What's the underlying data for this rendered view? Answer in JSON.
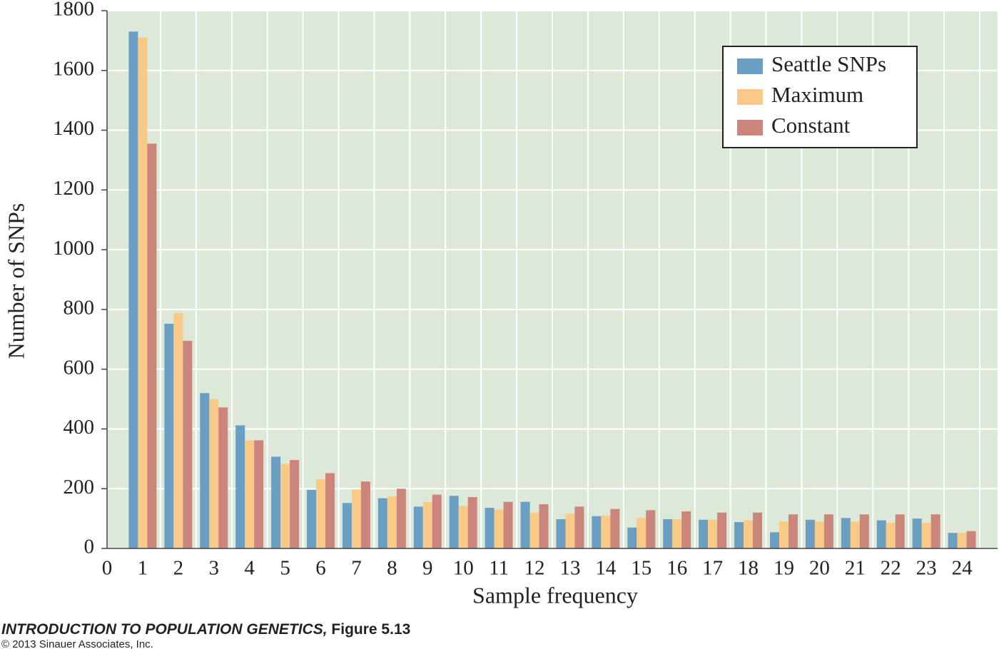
{
  "chart_data": {
    "type": "bar",
    "x_label": "Sample frequency",
    "y_label": "Number of SNPs",
    "x": [
      1,
      2,
      3,
      4,
      5,
      6,
      7,
      8,
      9,
      10,
      11,
      12,
      13,
      14,
      15,
      16,
      17,
      18,
      19,
      20,
      21,
      22,
      23,
      24
    ],
    "series": [
      {
        "name": "Seattle SNPs",
        "color": "#6a9ec2",
        "values": [
          1730,
          752,
          520,
          412,
          307,
          196,
          152,
          168,
          140,
          176,
          136,
          156,
          98,
          108,
          70,
          98,
          96,
          88,
          54,
          96,
          102,
          94,
          100,
          52
        ]
      },
      {
        "name": "Maximum",
        "color": "#f8c987",
        "values": [
          1710,
          788,
          500,
          362,
          283,
          232,
          198,
          174,
          156,
          142,
          130,
          120,
          116,
          110,
          102,
          98,
          96,
          94,
          90,
          90,
          90,
          86,
          86,
          52
        ]
      },
      {
        "name": "Constant",
        "color": "#cc857a",
        "values": [
          1355,
          695,
          472,
          362,
          296,
          252,
          224,
          200,
          180,
          172,
          156,
          148,
          140,
          132,
          128,
          124,
          120,
          120,
          114,
          114,
          114,
          114,
          114,
          58
        ]
      }
    ],
    "xlim": [
      0,
      25
    ],
    "xticks": [
      0,
      1,
      2,
      3,
      4,
      5,
      6,
      7,
      8,
      9,
      10,
      11,
      12,
      13,
      14,
      15,
      16,
      17,
      18,
      19,
      20,
      21,
      22,
      23,
      24
    ],
    "ylim": [
      0,
      1800
    ],
    "yticks": [
      0,
      200,
      400,
      600,
      800,
      1000,
      1200,
      1400,
      1600,
      1800
    ],
    "grid": true,
    "legend": "upper right",
    "background": "#dce8d8"
  },
  "credits": {
    "book": "INTRODUCTION TO POPULATION GENETICS,",
    "figure": "Figure 5.13",
    "copyright": "© 2013 Sinauer Associates, Inc."
  }
}
